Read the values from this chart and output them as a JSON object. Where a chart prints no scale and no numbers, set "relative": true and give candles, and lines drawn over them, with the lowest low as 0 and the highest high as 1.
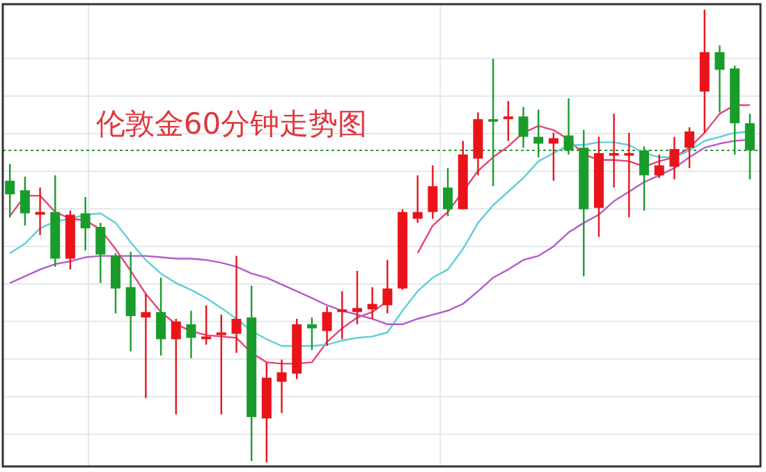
{
  "chart_data": {
    "type": "candlestick",
    "title": "伦敦金60分钟走势图",
    "relative": true,
    "grid": true,
    "categories": [
      null,
      null,
      null,
      null,
      null,
      null,
      null,
      null,
      null,
      null,
      null,
      null,
      null,
      null,
      null,
      null,
      null,
      null,
      null,
      null,
      null,
      null,
      null,
      null,
      null,
      null,
      null,
      null,
      null,
      null,
      null,
      null,
      null,
      null,
      null,
      null,
      null,
      null,
      null,
      null,
      null,
      null,
      null,
      null,
      null,
      null,
      null,
      null,
      null,
      null
    ],
    "ohlc": [
      [
        0.622,
        0.659,
        0.541,
        0.592
      ],
      [
        0.601,
        0.631,
        0.523,
        0.55
      ],
      [
        0.547,
        0.607,
        0.502,
        0.553
      ],
      [
        0.553,
        0.634,
        0.432,
        0.45
      ],
      [
        0.45,
        0.556,
        0.426,
        0.547
      ],
      [
        0.55,
        0.586,
        0.468,
        0.517
      ],
      [
        0.52,
        0.529,
        0.396,
        0.459
      ],
      [
        0.456,
        0.462,
        0.329,
        0.384
      ],
      [
        0.387,
        0.465,
        0.245,
        0.323
      ],
      [
        0.32,
        0.372,
        0.142,
        0.332
      ],
      [
        0.332,
        0.408,
        0.236,
        0.272
      ],
      [
        0.272,
        0.317,
        0.106,
        0.311
      ],
      [
        0.305,
        0.335,
        0.23,
        0.275
      ],
      [
        0.272,
        0.347,
        0.26,
        0.278
      ],
      [
        0.281,
        0.326,
        0.106,
        0.287
      ],
      [
        0.284,
        0.456,
        0.242,
        0.317
      ],
      [
        0.32,
        0.39,
        0.003,
        0.1
      ],
      [
        0.097,
        0.221,
        0,
        0.187
      ],
      [
        0.178,
        0.227,
        0.109,
        0.199
      ],
      [
        0.196,
        0.317,
        0.184,
        0.305
      ],
      [
        0.305,
        0.32,
        0.248,
        0.296
      ],
      [
        0.29,
        0.344,
        0.257,
        0.332
      ],
      [
        0.332,
        0.378,
        0.272,
        0.338
      ],
      [
        0.332,
        0.423,
        0.305,
        0.341
      ],
      [
        0.338,
        0.387,
        0.317,
        0.35
      ],
      [
        0.347,
        0.447,
        0.329,
        0.384
      ],
      [
        0.384,
        0.559,
        0.381,
        0.553
      ],
      [
        0.538,
        0.634,
        0.529,
        0.553
      ],
      [
        0.553,
        0.656,
        0.538,
        0.61
      ],
      [
        0.607,
        0.65,
        0.544,
        0.559
      ],
      [
        0.559,
        0.71,
        0.559,
        0.68
      ],
      [
        0.671,
        0.773,
        0.634,
        0.758
      ],
      [
        0.758,
        0.891,
        0.61,
        0.755
      ],
      [
        0.758,
        0.798,
        0.71,
        0.764
      ],
      [
        0.764,
        0.785,
        0.695,
        0.719
      ],
      [
        0.719,
        0.779,
        0.674,
        0.704
      ],
      [
        0.704,
        0.728,
        0.622,
        0.716
      ],
      [
        0.722,
        0.804,
        0.68,
        0.689
      ],
      [
        0.695,
        0.734,
        0.411,
        0.559
      ],
      [
        0.562,
        0.719,
        0.498,
        0.683
      ],
      [
        0.68,
        0.77,
        0.607,
        0.683
      ],
      [
        0.68,
        0.728,
        0.541,
        0.683
      ],
      [
        0.689,
        0.698,
        0.556,
        0.634
      ],
      [
        0.634,
        0.68,
        0.628,
        0.656
      ],
      [
        0.653,
        0.719,
        0.625,
        0.692
      ],
      [
        0.695,
        0.74,
        0.65,
        0.731
      ],
      [
        0.819,
        1,
        0.728,
        0.906
      ],
      [
        0.906,
        0.921,
        0.773,
        0.867
      ],
      [
        0.87,
        0.876,
        0.68,
        0.749
      ],
      [
        0.749,
        0.77,
        0.625,
        0.689
      ]
    ],
    "colors": [
      "#1a9c2c",
      "#1a9c2c",
      "#e8141a",
      "#1a9c2c",
      "#e8141a",
      "#1a9c2c",
      "#1a9c2c",
      "#1a9c2c",
      "#1a9c2c",
      "#e8141a",
      "#1a9c2c",
      "#e8141a",
      "#1a9c2c",
      "#e8141a",
      "#e8141a",
      "#e8141a",
      "#1a9c2c",
      "#e8141a",
      "#e8141a",
      "#e8141a",
      "#1a9c2c",
      "#e8141a",
      "#e8141a",
      "#e8141a",
      "#e8141a",
      "#e8141a",
      "#e8141a",
      "#e8141a",
      "#e8141a",
      "#1a9c2c",
      "#e8141a",
      "#e8141a",
      "#1a9c2c",
      "#e8141a",
      "#1a9c2c",
      "#1a9c2c",
      "#e8141a",
      "#1a9c2c",
      "#1a9c2c",
      "#e8141a",
      "#e8141a",
      "#e8141a",
      "#1a9c2c",
      "#e8141a",
      "#e8141a",
      "#e8141a",
      "#e8141a",
      "#1a9c2c",
      "#1a9c2c",
      "#1a9c2c"
    ],
    "series": [
      {
        "type": "line",
        "color": "#e8417a",
        "values": [
          0.544,
          0.589,
          0.589,
          0.553,
          0.538,
          0.535,
          0.514,
          0.471,
          0.423,
          0.372,
          0.332,
          0.305,
          0.29,
          0.281,
          0.278,
          0.275,
          0.242,
          0.221,
          0.218,
          0.218,
          0.221,
          0.266,
          0.296,
          0.32,
          0.332,
          0.356,
          null,
          0.462,
          0.523,
          0.553,
          0.598,
          0.644,
          0.674,
          0.698,
          0.728,
          0.743,
          0.734,
          0.713,
          0.68,
          0.668,
          0.668,
          0.665,
          0.653,
          0.665,
          0.674,
          0.695,
          0.728,
          0.77,
          0.789,
          0.789
        ]
      },
      {
        "type": "line",
        "color": "#5ccfd6",
        "values": [
          0.462,
          0.483,
          0.517,
          0.532,
          0.538,
          0.547,
          0.55,
          0.529,
          0.486,
          0.447,
          0.417,
          0.396,
          0.381,
          0.363,
          0.341,
          0.317,
          0.29,
          0.272,
          0.257,
          0.257,
          0.257,
          0.26,
          0.269,
          0.275,
          0.278,
          0.287,
          0.335,
          0.378,
          0.408,
          0.426,
          0.471,
          0.529,
          0.568,
          0.598,
          0.628,
          0.665,
          0.683,
          0.701,
          0.701,
          0.707,
          0.707,
          0.701,
          0.683,
          0.674,
          0.674,
          0.689,
          0.71,
          0.719,
          0.728,
          0.731
        ]
      },
      {
        "type": "line",
        "color": "#b25ccb",
        "values": [
          0.396,
          0.411,
          0.426,
          0.438,
          0.444,
          0.453,
          0.456,
          0.456,
          0.456,
          0.456,
          0.453,
          0.45,
          0.45,
          0.447,
          0.441,
          0.432,
          0.417,
          0.408,
          0.393,
          0.378,
          0.363,
          0.347,
          0.335,
          0.326,
          0.317,
          0.305,
          0.305,
          0.317,
          0.326,
          0.335,
          0.35,
          0.378,
          0.408,
          0.426,
          0.447,
          0.456,
          0.477,
          0.508,
          0.529,
          0.547,
          0.577,
          0.598,
          0.619,
          0.634,
          0.65,
          0.674,
          0.695,
          0.704,
          0.71,
          0.713
        ]
      }
    ],
    "ref_lines": [
      {
        "axis": "y",
        "value": 0.689,
        "color": "#2e9a2e",
        "line_style": "dotted"
      }
    ]
  }
}
